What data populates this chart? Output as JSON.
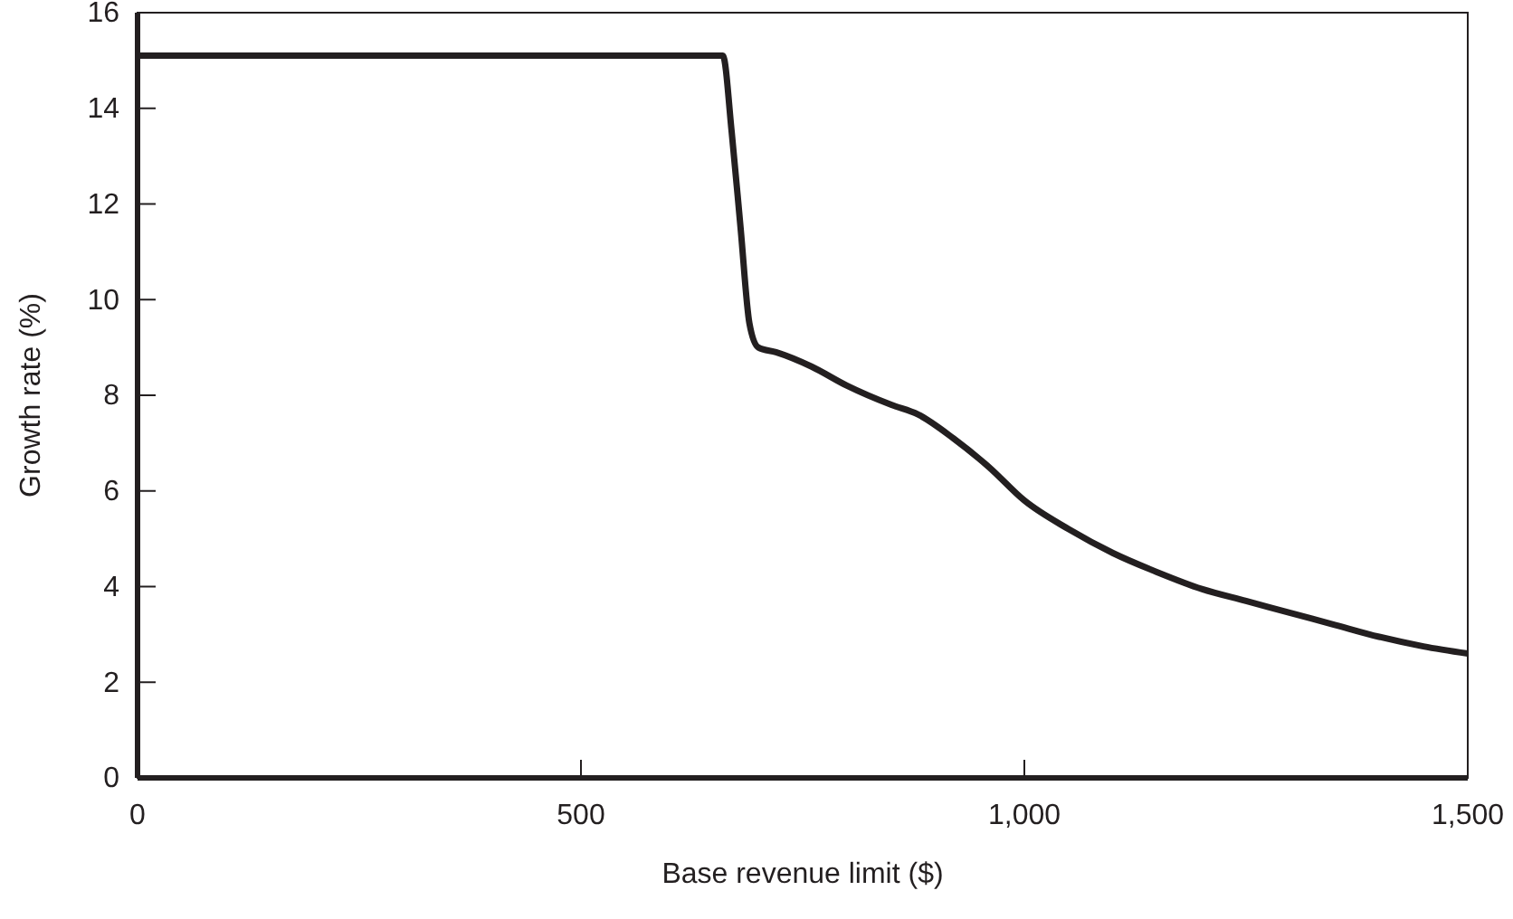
{
  "chart_data": {
    "type": "line",
    "xlabel": "Base revenue limit ($)",
    "ylabel": "Growth rate (%)",
    "x": [
      0,
      660,
      670,
      680,
      690,
      700,
      720,
      760,
      800,
      850,
      880,
      920,
      960,
      1000,
      1050,
      1100,
      1150,
      1200,
      1250,
      1300,
      1350,
      1400,
      1450,
      1500
    ],
    "series": [
      {
        "color": "#231f20",
        "values": [
          15.1,
          15.1,
          13.5,
          11.5,
          9.5,
          9.0,
          8.9,
          8.6,
          8.2,
          7.8,
          7.6,
          7.1,
          6.5,
          5.8,
          5.2,
          4.7,
          4.3,
          3.95,
          3.7,
          3.45,
          3.2,
          2.95,
          2.75,
          2.6
        ]
      }
    ],
    "xlim": [
      0,
      1500
    ],
    "xticks": [
      0,
      500,
      {
        "value": 1000,
        "label": "1,000"
      },
      {
        "value": 1500,
        "label": "1,500"
      }
    ],
    "ylim": [
      0,
      16
    ],
    "yticks": [
      0,
      2,
      4,
      6,
      8,
      10,
      12,
      14,
      16
    ],
    "grid": false,
    "marker": "none",
    "line_style": "solid"
  }
}
